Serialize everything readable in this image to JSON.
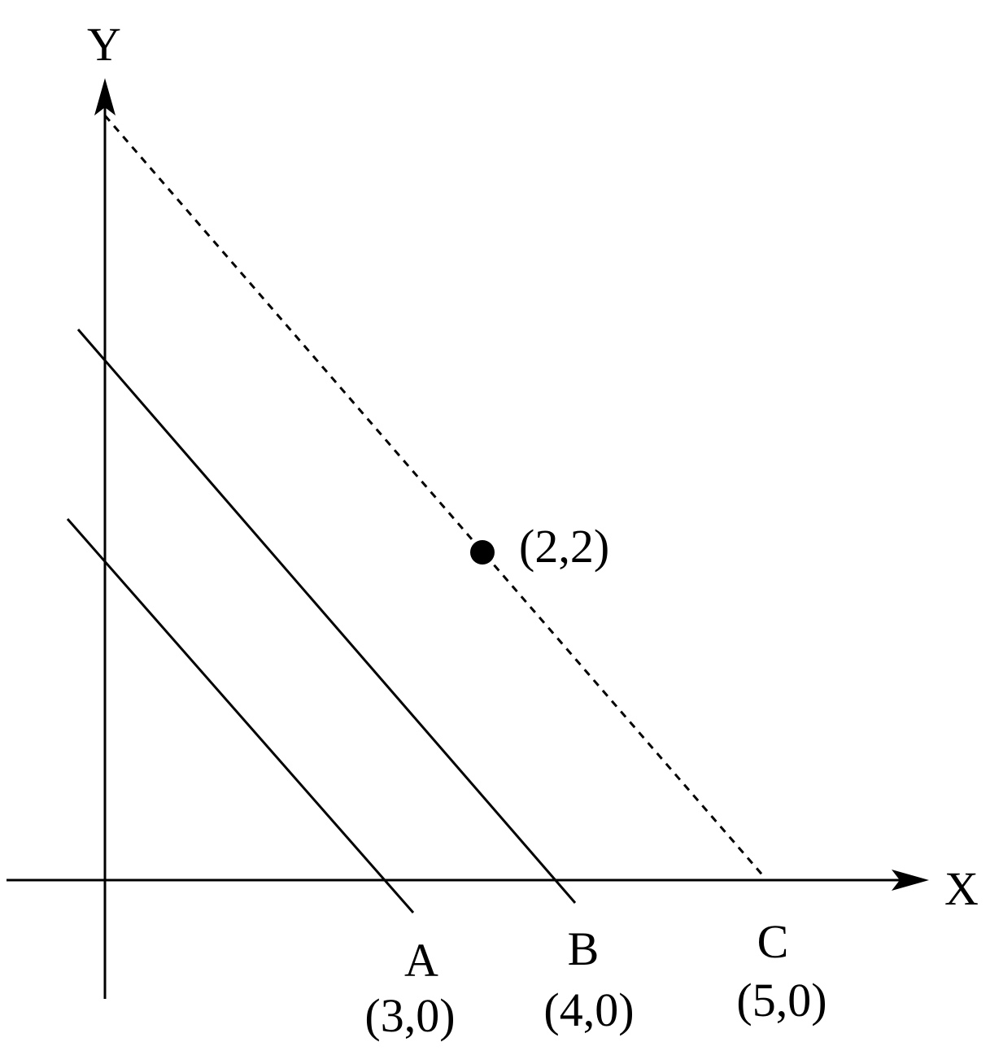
{
  "axes": {
    "x_label": "X",
    "y_label": "Y"
  },
  "lines": [
    {
      "name": "A",
      "x_intercept_label": "(3,0)",
      "style": "solid"
    },
    {
      "name": "B",
      "x_intercept_label": "(4,0)",
      "style": "solid"
    },
    {
      "name": "C",
      "x_intercept_label": "(5,0)",
      "style": "dashed"
    }
  ],
  "point": {
    "label": "(2,2)",
    "x": 2,
    "y": 2
  },
  "colors": {
    "ink": "#000000",
    "background": "#ffffff"
  }
}
